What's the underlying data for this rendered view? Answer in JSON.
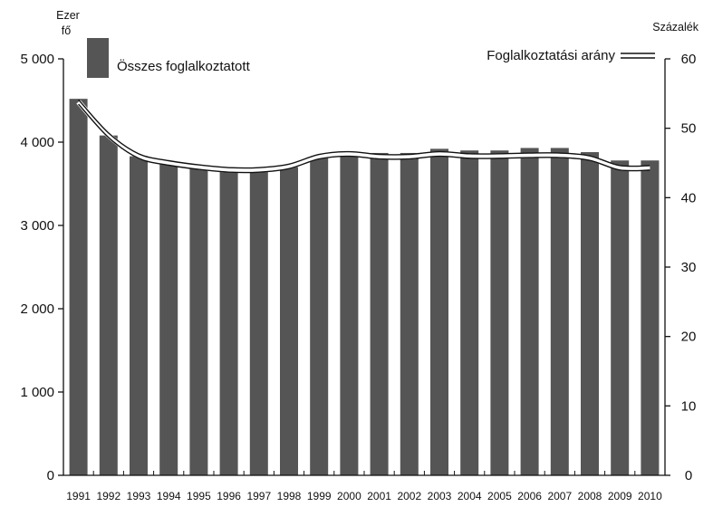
{
  "chart_data": {
    "type": "bar+line",
    "left_axis": {
      "unit_line1": "Ezer",
      "unit_line2": "fő",
      "ylim": [
        0,
        5000
      ],
      "ticks": [
        0,
        1000,
        2000,
        3000,
        4000,
        5000
      ],
      "tick_labels": [
        "0",
        "1 000",
        "2 000",
        "3 000",
        "4 000",
        "5 000"
      ]
    },
    "right_axis": {
      "unit": "Százalék",
      "ylim": [
        0,
        60
      ],
      "ticks": [
        0,
        10,
        20,
        30,
        40,
        50,
        60
      ],
      "tick_labels": [
        "0",
        "10",
        "20",
        "30",
        "40",
        "50",
        "60"
      ]
    },
    "categories": [
      "1991",
      "1992",
      "1993",
      "1994",
      "1995",
      "1996",
      "1997",
      "1998",
      "1999",
      "2000",
      "2001",
      "2002",
      "2003",
      "2004",
      "2005",
      "2006",
      "2007",
      "2008",
      "2009",
      "2010"
    ],
    "series": [
      {
        "name": "Összes foglalkoztatott",
        "kind": "bar",
        "axis": "left",
        "color": "#555555",
        "values": [
          4520,
          4080,
          3830,
          3750,
          3680,
          3650,
          3650,
          3700,
          3810,
          3850,
          3870,
          3870,
          3920,
          3900,
          3900,
          3930,
          3930,
          3880,
          3780,
          3780
        ]
      },
      {
        "name": "Foglalkoztatási arány",
        "kind": "line",
        "axis": "right",
        "style": "double-line",
        "values": [
          53.8,
          49.0,
          46.0,
          45.0,
          44.4,
          44.0,
          44.0,
          44.5,
          45.9,
          46.3,
          45.9,
          45.9,
          46.3,
          46.0,
          46.0,
          46.1,
          46.1,
          45.7,
          44.3,
          44.3
        ]
      }
    ],
    "legend_placement": "top",
    "grid": false
  }
}
